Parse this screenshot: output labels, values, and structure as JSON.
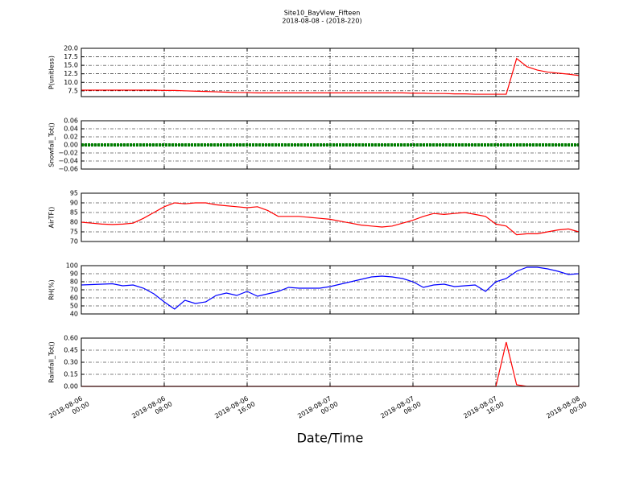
{
  "title": "Site10_BayView_Fifteen",
  "subtitle": "2018-08-08 - (2018-220)",
  "xlabel": "Date/Time",
  "xlim": [
    "2018-08-06 00:00",
    "2018-08-08 00:00"
  ],
  "xticks": [
    "2018-08-06 00:00",
    "2018-08-06 08:00",
    "2018-08-06 16:00",
    "2018-08-07 00:00",
    "2018-08-07 08:00",
    "2018-08-07 16:00",
    "2018-08-08 00:00"
  ],
  "x": [
    "2018-08-06 00:00",
    "2018-08-06 01:00",
    "2018-08-06 02:00",
    "2018-08-06 03:00",
    "2018-08-06 04:00",
    "2018-08-06 05:00",
    "2018-08-06 06:00",
    "2018-08-06 07:00",
    "2018-08-06 08:00",
    "2018-08-06 09:00",
    "2018-08-06 10:00",
    "2018-08-06 11:00",
    "2018-08-06 12:00",
    "2018-08-06 13:00",
    "2018-08-06 14:00",
    "2018-08-06 15:00",
    "2018-08-06 16:00",
    "2018-08-06 17:00",
    "2018-08-06 18:00",
    "2018-08-06 19:00",
    "2018-08-06 20:00",
    "2018-08-06 21:00",
    "2018-08-06 22:00",
    "2018-08-06 23:00",
    "2018-08-07 00:00",
    "2018-08-07 01:00",
    "2018-08-07 02:00",
    "2018-08-07 03:00",
    "2018-08-07 04:00",
    "2018-08-07 05:00",
    "2018-08-07 06:00",
    "2018-08-07 07:00",
    "2018-08-07 08:00",
    "2018-08-07 09:00",
    "2018-08-07 10:00",
    "2018-08-07 11:00",
    "2018-08-07 12:00",
    "2018-08-07 13:00",
    "2018-08-07 14:00",
    "2018-08-07 15:00",
    "2018-08-07 16:00",
    "2018-08-07 17:00",
    "2018-08-07 18:00",
    "2018-08-07 19:00",
    "2018-08-07 20:00",
    "2018-08-07 21:00",
    "2018-08-07 22:00",
    "2018-08-07 23:00",
    "2018-08-08 00:00"
  ],
  "chart_data": [
    {
      "type": "line",
      "ylabel": "P(unitless)",
      "color": "#ff0000",
      "grid": true,
      "ylim": [
        5.8,
        20
      ],
      "yticks": [
        7.5,
        {
          "value": 10,
          "label": "10.0"
        },
        12.5,
        {
          "value": 15,
          "label": "15.0"
        },
        17.5,
        {
          "value": 20,
          "label": "20.0"
        }
      ],
      "values": [
        7.7,
        7.7,
        7.7,
        7.7,
        7.7,
        7.7,
        7.7,
        7.7,
        7.6,
        7.6,
        7.5,
        7.4,
        7.3,
        7.2,
        7.1,
        7.0,
        7.0,
        6.9,
        6.9,
        6.9,
        6.9,
        6.9,
        6.9,
        6.9,
        6.9,
        6.9,
        6.9,
        6.9,
        6.9,
        6.9,
        6.9,
        6.9,
        6.8,
        6.8,
        6.7,
        6.7,
        6.6,
        6.6,
        6.5,
        6.5,
        6.5,
        6.5,
        17.0,
        14.6,
        13.6,
        13.0,
        12.7,
        12.4,
        12.0
      ]
    },
    {
      "type": "dotline",
      "ylabel": "Snowfall_Tot()",
      "color": "#007f00",
      "grid": true,
      "ylim": [
        -0.06,
        0.06
      ],
      "yticks": [
        {
          "value": -0.06,
          "label": "−0.06"
        },
        {
          "value": -0.04,
          "label": "−0.04"
        },
        {
          "value": -0.02,
          "label": "−0.02"
        },
        {
          "value": 0,
          "label": "0.00"
        },
        {
          "value": 0.02,
          "label": "0.02"
        },
        {
          "value": 0.04,
          "label": "0.04"
        },
        {
          "value": 0.06,
          "label": "0.06"
        }
      ],
      "values": [
        0,
        0,
        0,
        0,
        0,
        0,
        0,
        0,
        0,
        0,
        0,
        0,
        0,
        0,
        0,
        0,
        0,
        0,
        0,
        0,
        0,
        0,
        0,
        0,
        0,
        0,
        0,
        0,
        0,
        0,
        0,
        0,
        0,
        0,
        0,
        0,
        0,
        0,
        0,
        0,
        0,
        0,
        0,
        0,
        0,
        0,
        0,
        0,
        0
      ]
    },
    {
      "type": "line",
      "ylabel": "AirTF()",
      "color": "#ff0000",
      "grid": true,
      "ylim": [
        70,
        95
      ],
      "yticks": [
        70,
        75,
        80,
        85,
        90,
        95
      ],
      "values": [
        80,
        79.5,
        79,
        78.8,
        79,
        79.5,
        82,
        85,
        88,
        90,
        89.5,
        90,
        90,
        89,
        88.5,
        88,
        87.5,
        88,
        86,
        83,
        83,
        83,
        82.5,
        82,
        81.5,
        80.5,
        79.5,
        78.5,
        78,
        77.5,
        78,
        79.5,
        81,
        83,
        84.5,
        84,
        84.5,
        85,
        84,
        83,
        79,
        78,
        73.5,
        74,
        74,
        75,
        76,
        76.5,
        75
      ]
    },
    {
      "type": "line",
      "ylabel": "RH(%)",
      "color": "#0000ff",
      "grid": true,
      "ylim": [
        40,
        100
      ],
      "yticks": [
        40,
        50,
        60,
        70,
        80,
        90,
        100
      ],
      "values": [
        76,
        76.5,
        77,
        77.5,
        75,
        76,
        72,
        65,
        55,
        46,
        57,
        53,
        55,
        63,
        66,
        63,
        68,
        62,
        65,
        68,
        73,
        72,
        72,
        72,
        74,
        77,
        80,
        83,
        86,
        87,
        86,
        84,
        80,
        73,
        76,
        77,
        74,
        75,
        76,
        68,
        80,
        84,
        93,
        98,
        98,
        96,
        93,
        89,
        90
      ]
    },
    {
      "type": "line",
      "ylabel": "Rainfall_Tot()",
      "color": "#ff0000",
      "grid": true,
      "ylim": [
        0,
        0.6
      ],
      "yticks": [
        {
          "value": 0,
          "label": "0.00"
        },
        {
          "value": 0.15,
          "label": "0.15"
        },
        {
          "value": 0.3,
          "label": "0.30"
        },
        {
          "value": 0.45,
          "label": "0.45"
        },
        {
          "value": 0.6,
          "label": "0.60"
        }
      ],
      "values": [
        0,
        0,
        0,
        0,
        0,
        0,
        0,
        0,
        0,
        0,
        0,
        0,
        0,
        0,
        0,
        0,
        0,
        0,
        0,
        0,
        0,
        0,
        0,
        0,
        0,
        0,
        0,
        0,
        0,
        0,
        0,
        0,
        0,
        0,
        0,
        0,
        0,
        0,
        0,
        0,
        0,
        0.55,
        0.02,
        0,
        0,
        0,
        0,
        0,
        0
      ]
    }
  ]
}
